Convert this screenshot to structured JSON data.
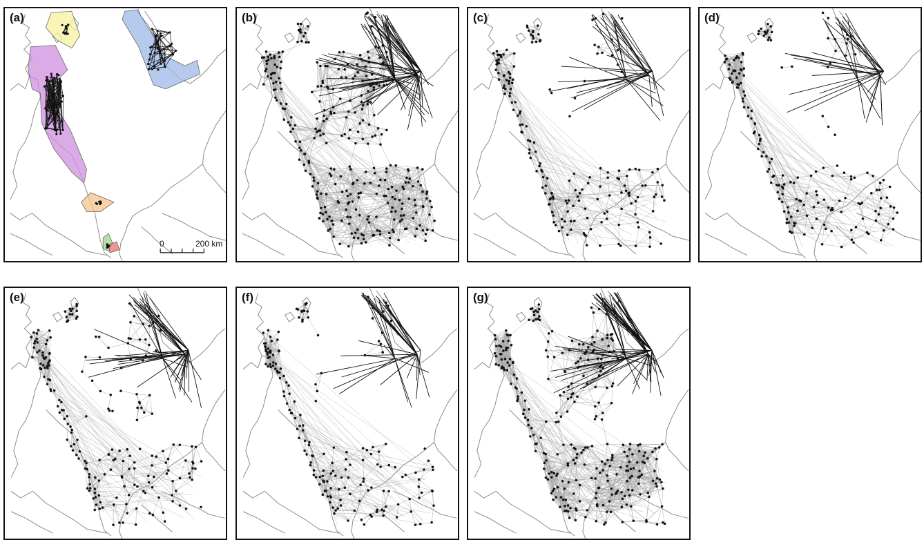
{
  "figure": {
    "panels": [
      {
        "id": "a",
        "label": "(a)",
        "variant": "clusters"
      },
      {
        "id": "b",
        "label": "(b)",
        "variant": "dense"
      },
      {
        "id": "c",
        "label": "(c)",
        "variant": "sparse"
      },
      {
        "id": "d",
        "label": "(d)",
        "variant": "sparse2"
      },
      {
        "id": "e",
        "label": "(e)",
        "variant": "medium"
      },
      {
        "id": "f",
        "label": "(f)",
        "variant": "sparse3"
      },
      {
        "id": "g",
        "label": "(g)",
        "variant": "dense2"
      }
    ],
    "scale_bar": {
      "start_label": "0",
      "end_label": "200 km"
    },
    "colors": {
      "coast": "#8a8a8a",
      "edge_light": "#a8a8a8",
      "edge_dark": "#111111",
      "node": "#111111",
      "cluster_blue": "#9db8e8",
      "cluster_purple": "#cf8fe0",
      "cluster_yellow": "#f7f0a0",
      "cluster_orange": "#f5c48a",
      "cluster_green": "#9fd88a",
      "cluster_red": "#e57373"
    }
  }
}
